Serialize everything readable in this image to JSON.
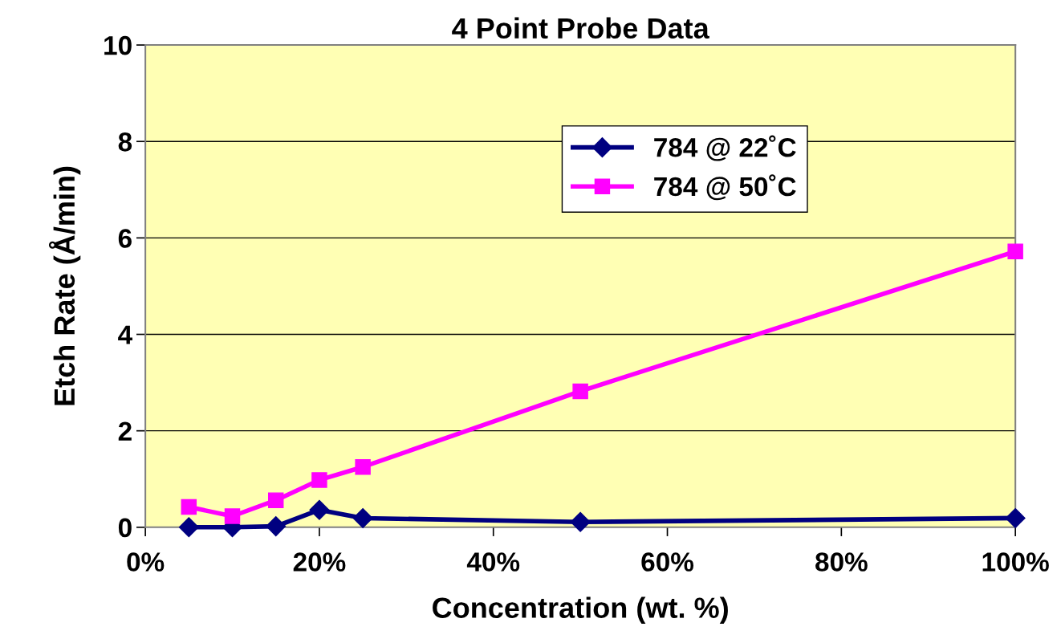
{
  "chart_data": {
    "type": "line",
    "title": "4 Point Probe Data",
    "xlabel": "Concentration (wt. %)",
    "ylabel": "Etch Rate (Å/min)",
    "x": [
      0.05,
      0.1,
      0.15,
      0.2,
      0.25,
      0.5,
      1.0
    ],
    "series": [
      {
        "name": "784 @ 22˚C",
        "color": "#000080",
        "marker": "diamond",
        "values": [
          0,
          0,
          0.02,
          0.36,
          0.19,
          0.11,
          0.19
        ]
      },
      {
        "name": "784 @ 50˚C",
        "color": "#ff00ff",
        "marker": "square",
        "values": [
          0.42,
          0.23,
          0.56,
          0.98,
          1.25,
          2.82,
          5.72
        ]
      }
    ],
    "xlim": [
      0,
      1
    ],
    "xticks": [
      {
        "value": 0,
        "label": "0%"
      },
      {
        "value": 0.2,
        "label": "20%"
      },
      {
        "value": 0.4,
        "label": "40%"
      },
      {
        "value": 0.6,
        "label": "60%"
      },
      {
        "value": 0.8,
        "label": "80%"
      },
      {
        "value": 1,
        "label": "100%"
      }
    ],
    "ylim": [
      0,
      10
    ],
    "yticks": [
      0,
      2,
      4,
      6,
      8,
      10
    ],
    "grid": "y",
    "legend": "top"
  }
}
